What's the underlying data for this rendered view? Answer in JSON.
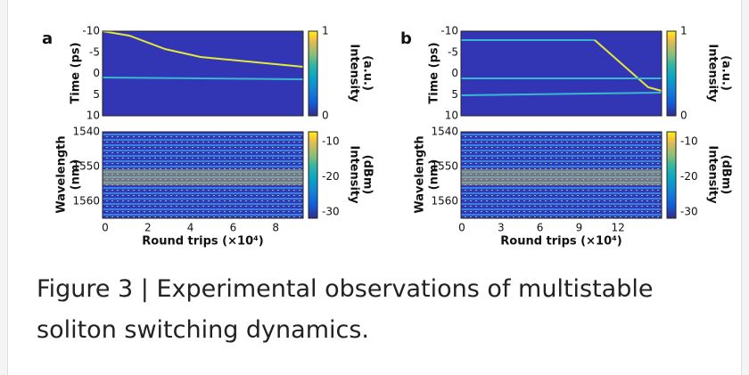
{
  "panels": [
    {
      "label": "a",
      "top": {
        "ylabel": "Time (ps)",
        "yticks": [
          -10,
          -5,
          0,
          5,
          10
        ],
        "colorbar_label": [
          "Intensity",
          "(a.u.)"
        ],
        "colorbar_ticks": [
          1,
          0
        ]
      },
      "bottom": {
        "ylabel": [
          "Wavelength",
          "(nm)"
        ],
        "yticks": [
          1540,
          1550,
          1560
        ],
        "colorbar_label": [
          "Intensity",
          "(dBm)"
        ],
        "colorbar_ticks": [
          -10,
          -20,
          -30
        ],
        "xticks": [
          0,
          2,
          4,
          6,
          8
        ],
        "xlabel": "Round trips (×10⁴)"
      }
    },
    {
      "label": "b",
      "top": {
        "ylabel": "Time (ps)",
        "yticks": [
          -10,
          -5,
          0,
          5,
          10
        ],
        "colorbar_label": [
          "Intensity",
          "(a.u.)"
        ],
        "colorbar_ticks": [
          1,
          0
        ]
      },
      "bottom": {
        "ylabel": [
          "Wavelength",
          "(nm)"
        ],
        "yticks": [
          1540,
          1550,
          1560
        ],
        "colorbar_label": [
          "Intensity",
          "(dBm)"
        ],
        "colorbar_ticks": [
          -10,
          -20,
          -30
        ],
        "xticks": [
          0,
          3,
          6,
          9,
          12
        ],
        "xlabel": "Round trips (×10⁴)"
      }
    }
  ],
  "caption": "Figure 3 | Experimental observations of multistable soliton switching dynamics."
}
